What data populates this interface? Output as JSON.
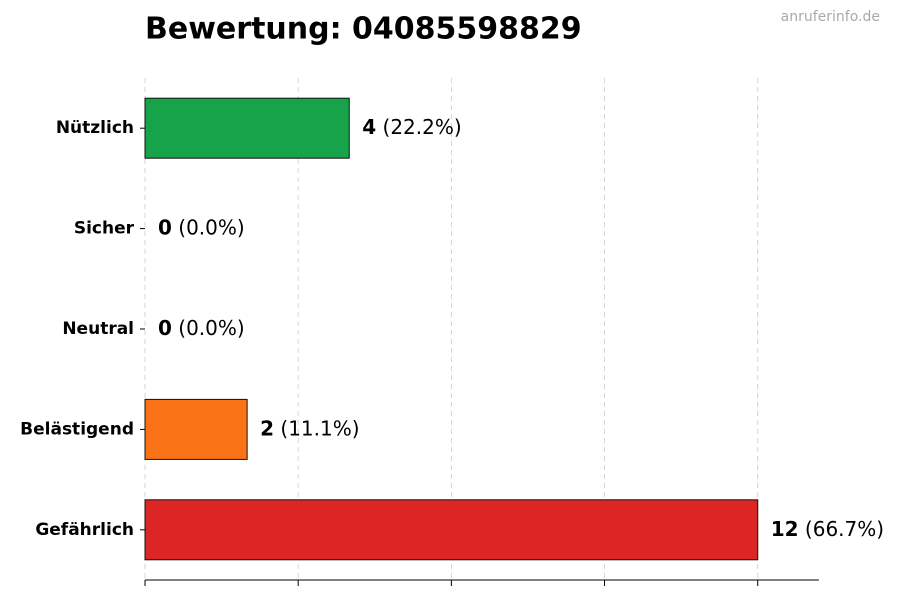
{
  "chart_data": {
    "type": "barh",
    "title": "Bewertung: 04085598829",
    "watermark": "anruferinfo.de",
    "categories": [
      "Nützlich",
      "Sicher",
      "Neutral",
      "Belästigend",
      "Gefährlich"
    ],
    "values": [
      4,
      0,
      0,
      2,
      12
    ],
    "percent_labels": [
      "(22.2%)",
      "(0.0%)",
      "(0.0%)",
      "(11.1%)",
      "(66.7%)"
    ],
    "colors": [
      "#16a34a",
      "#4ade80",
      "#9ca3af",
      "#f97316",
      "#dc2626"
    ],
    "xlim": [
      0,
      13.2
    ],
    "xticks": [
      0,
      3,
      6,
      9,
      12
    ],
    "grid": true
  }
}
